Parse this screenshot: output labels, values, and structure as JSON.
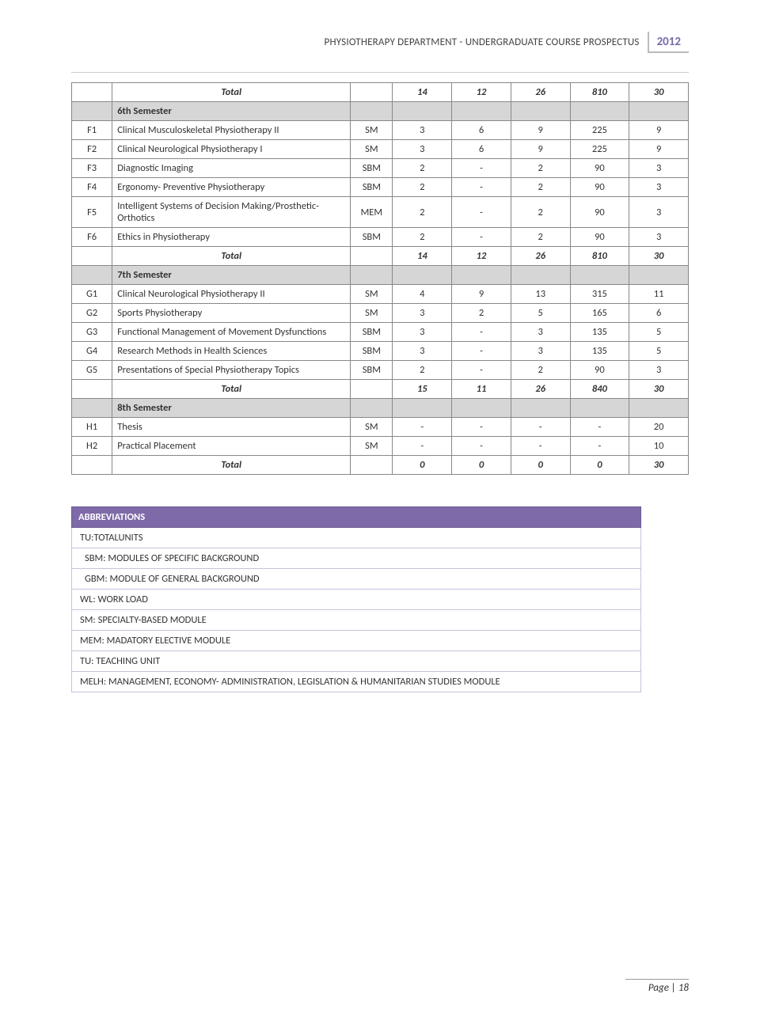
{
  "header": {
    "title": "PHYSIOTHERAPY DEPARTMENT - UNDERGRADUATE COURSE PROSPECTUS",
    "year": "2012"
  },
  "table": {
    "rows": [
      {
        "kind": "total",
        "title": "Total",
        "c3": "",
        "c4": "14",
        "c5": "12",
        "c6": "26",
        "c7": "810",
        "c8": "30"
      },
      {
        "kind": "sem",
        "title": "6th Semester"
      },
      {
        "kind": "course",
        "code": "F1",
        "title": "Clinical Musculoskeletal Physiotherapy II",
        "type": "SM",
        "c4": "3",
        "c5": "6",
        "c6": "9",
        "c7": "225",
        "c8": "9"
      },
      {
        "kind": "course",
        "code": "F2",
        "title": "Clinical Neurological Physiotherapy I",
        "type": "SM",
        "c4": "3",
        "c5": "6",
        "c6": "9",
        "c7": "225",
        "c8": "9"
      },
      {
        "kind": "course",
        "code": "F3",
        "title": "Diagnostic Imaging",
        "type": "SBM",
        "c4": "2",
        "c5": "-",
        "c6": "2",
        "c7": "90",
        "c8": "3"
      },
      {
        "kind": "course",
        "code": "F4",
        "title": "Ergonomy- Preventive Physiotherapy",
        "type": "SBM",
        "c4": "2",
        "c5": "-",
        "c6": "2",
        "c7": "90",
        "c8": "3"
      },
      {
        "kind": "course",
        "code": "F5",
        "title": "Intelligent Systems of Decision Making/Prosthetic-Orthotics",
        "type": "MEM",
        "c4": "2",
        "c5": "-",
        "c6": "2",
        "c7": "90",
        "c8": "3"
      },
      {
        "kind": "course",
        "code": "F6",
        "title": "Ethics in Physiotherapy",
        "type": "SBM",
        "c4": "2",
        "c5": "-",
        "c6": "2",
        "c7": "90",
        "c8": "3"
      },
      {
        "kind": "total",
        "title": "Total",
        "c3": "",
        "c4": "14",
        "c5": "12",
        "c6": "26",
        "c7": "810",
        "c8": "30"
      },
      {
        "kind": "sem",
        "title": "7th Semester"
      },
      {
        "kind": "course",
        "code": "G1",
        "title": "Clinical Neurological Physiotherapy II",
        "type": "SM",
        "c4": "4",
        "c5": "9",
        "c6": "13",
        "c7": "315",
        "c8": "11"
      },
      {
        "kind": "course",
        "code": "G2",
        "title": "Sports  Physiotherapy",
        "type": "SM",
        "c4": "3",
        "c5": "2",
        "c6": "5",
        "c7": "165",
        "c8": "6"
      },
      {
        "kind": "course",
        "code": "G3",
        "title": "Functional Management of Movement Dysfunctions",
        "type": "SBM",
        "c4": "3",
        "c5": "-",
        "c6": "3",
        "c7": "135",
        "c8": "5"
      },
      {
        "kind": "course",
        "code": "G4",
        "title": "Research Methods in Health Sciences",
        "type": "SBM",
        "c4": "3",
        "c5": "-",
        "c6": "3",
        "c7": "135",
        "c8": "5"
      },
      {
        "kind": "course",
        "code": "G5",
        "title": "Presentations of Special Physiotherapy Topics",
        "type": "SBM",
        "c4": "2",
        "c5": "-",
        "c6": "2",
        "c7": "90",
        "c8": "3"
      },
      {
        "kind": "total",
        "title": "Total",
        "c3": "",
        "c4": "15",
        "c5": "11",
        "c6": "26",
        "c7": "840",
        "c8": "30"
      },
      {
        "kind": "sem",
        "title": "8th Semester"
      },
      {
        "kind": "course",
        "code": "H1",
        "title": "Thesis",
        "type": "SM",
        "c4": "-",
        "c5": "-",
        "c6": "-",
        "c7": "-",
        "c8": "20"
      },
      {
        "kind": "course",
        "code": "H2",
        "title": "Practical Placement",
        "type": "SM",
        "c4": "-",
        "c5": "-",
        "c6": "-",
        "c7": "-",
        "c8": "10"
      },
      {
        "kind": "total",
        "title": "Total",
        "c3": "",
        "c4": "0",
        "c5": "0",
        "c6": "0",
        "c7": "0",
        "c8": "30"
      }
    ]
  },
  "abbrev": {
    "header": "ABBREVIATIONS",
    "items": [
      {
        "text": "TU:TOTALUNITS",
        "indent": false
      },
      {
        "text": "SBM:  MODULES OF SPECIFIC BACKGROUND",
        "indent": true
      },
      {
        "text": "GBM:  MODULE OF GENERAL BACKGROUND",
        "indent": true
      },
      {
        "text": "WL: WORK LOAD",
        "indent": false
      },
      {
        "text": "SM: SPECIALTY-BASED MODULE",
        "indent": false
      },
      {
        "text": "MEM: MADATORY ELECTIVE MODULE",
        "indent": false
      },
      {
        "text": "TU: TEACHING UNIT",
        "indent": false
      },
      {
        "text": "MELH:  MANAGEMENT, ECONOMY-   ADMINISTRATION, LEGISLATION & HUMANITARIAN STUDIES MODULE",
        "indent": false
      }
    ]
  },
  "footer": "Page | 18"
}
